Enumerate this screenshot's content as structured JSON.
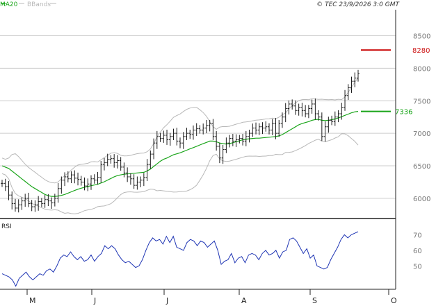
{
  "header": {
    "legend": [
      {
        "label": "MA20",
        "color": "#1aa51a"
      },
      {
        "label": "BBands",
        "color": "#b8b8b8"
      }
    ],
    "copyright": "© TEC 23/9/2026 3:0 GMT"
  },
  "colors": {
    "bars": "#1a1a1a",
    "ma": "#1aa51a",
    "bands": "#b8b8b8",
    "rsi": "#1f35b4",
    "grid": "#cccccc",
    "level_red": "#cc1111",
    "level_green": "#1aa51a",
    "axis_text": "#777777"
  },
  "chart_data": [
    {
      "type": "line",
      "subtype": "ohlc-bars",
      "x_labels": [
        "M",
        "J",
        "J",
        "A",
        "S",
        "O"
      ],
      "y_ticks": [
        6000,
        6500,
        7000,
        7500,
        8000,
        8500
      ],
      "ylim": [
        5700,
        8900
      ],
      "grid": true,
      "levels": [
        {
          "value": 8280,
          "label": "8280",
          "color": "#cc1111"
        },
        {
          "value": 7336,
          "label": "7336",
          "color": "#1aa51a"
        }
      ],
      "series": [
        {
          "values": [
            6230,
            6180,
            6050,
            5920,
            5850,
            5900,
            5960,
            6000,
            5920,
            5870,
            5900,
            5950,
            5920,
            5980,
            5960,
            5930,
            6000,
            6150,
            6280,
            6330,
            6300,
            6360,
            6310,
            6290,
            6250,
            6190,
            6220,
            6300,
            6280,
            6320,
            6520,
            6550,
            6600,
            6610,
            6550,
            6580,
            6480,
            6390,
            6330,
            6300,
            6200,
            6250,
            6280,
            6320,
            6520,
            6680,
            6850,
            6950,
            6920,
            6970,
            6900,
            6950,
            7000,
            6880,
            6850,
            6950,
            7000,
            6980,
            7050,
            7070,
            7050,
            7080,
            7120,
            7150,
            6950,
            6800,
            6620,
            6750,
            6850,
            6920,
            6880,
            6900,
            6920,
            6880,
            6950,
            7000,
            7080,
            7050,
            7100,
            7080,
            7100,
            7050,
            7150,
            7000,
            7150,
            7250,
            7380,
            7450,
            7420,
            7350,
            7400,
            7350,
            7300,
            7380,
            7450,
            7300,
            7250,
            6950,
            7100,
            7200,
            7180,
            7250,
            7300,
            7400,
            7580,
            7700,
            7800,
            7850,
            7920
          ]
        },
        {
          "name": "MA20",
          "values": [
            6500,
            6480,
            6460,
            6420,
            6380,
            6340,
            6300,
            6260,
            6220,
            6180,
            6150,
            6120,
            6090,
            6060,
            6040,
            6030,
            6030,
            6035,
            6045,
            6060,
            6080,
            6100,
            6120,
            6140,
            6155,
            6170,
            6180,
            6195,
            6205,
            6215,
            6235,
            6255,
            6280,
            6305,
            6330,
            6350,
            6360,
            6370,
            6375,
            6380,
            6385,
            6390,
            6395,
            6400,
            6420,
            6450,
            6490,
            6530,
            6570,
            6600,
            6620,
            6645,
            6670,
            6685,
            6700,
            6720,
            6740,
            6760,
            6780,
            6800,
            6820,
            6840,
            6860,
            6880,
            6880,
            6870,
            6850,
            6840,
            6835,
            6840,
            6855,
            6870,
            6885,
            6900,
            6910,
            6915,
            6920,
            6925,
            6925,
            6930,
            6935,
            6940,
            6945,
            6950,
            6960,
            6980,
            7010,
            7040,
            7070,
            7100,
            7130,
            7150,
            7165,
            7180,
            7200,
            7210,
            7215,
            7200,
            7195,
            7200,
            7210,
            7220,
            7235,
            7255,
            7275,
            7295,
            7315,
            7330,
            7336
          ]
        },
        {
          "name": "BBands",
          "values": []
        }
      ]
    },
    {
      "type": "line",
      "title": "RSI",
      "y_ticks": [
        50,
        60,
        70
      ],
      "ylim": [
        35,
        80
      ],
      "grid": false,
      "series": [
        {
          "values": [
            45,
            44,
            43,
            41,
            37,
            42,
            44,
            46,
            43,
            41,
            43,
            45,
            44,
            47,
            48,
            46,
            50,
            55,
            57,
            56,
            59,
            56,
            54,
            56,
            53,
            54,
            57,
            53,
            56,
            58,
            63,
            61,
            63,
            61,
            57,
            54,
            52,
            53,
            51,
            49,
            50,
            54,
            60,
            65,
            68,
            66,
            67,
            64,
            69,
            65,
            69,
            62,
            61,
            60,
            65,
            67,
            66,
            63,
            66,
            65,
            62,
            64,
            66,
            60,
            51,
            53,
            54,
            58,
            52,
            55,
            56,
            52,
            57,
            58,
            57,
            54,
            58,
            60,
            57,
            58,
            60,
            55,
            59,
            60,
            67,
            68,
            66,
            62,
            58,
            61,
            55,
            57,
            50,
            49,
            48,
            49,
            54,
            58,
            62,
            67,
            70,
            68,
            70,
            71,
            72
          ]
        }
      ]
    }
  ]
}
